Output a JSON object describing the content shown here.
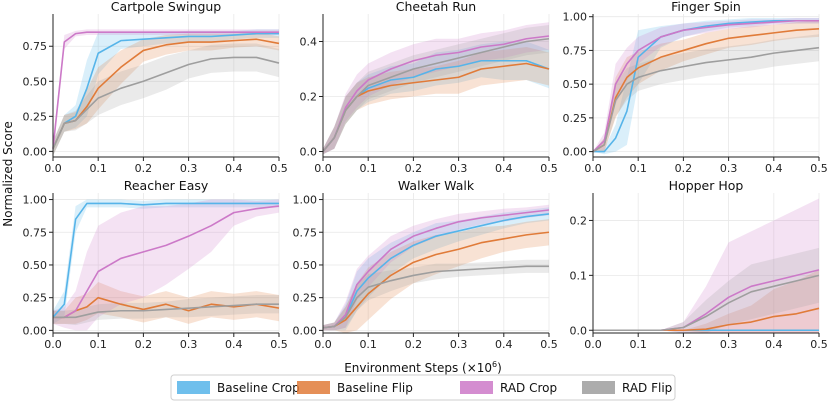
{
  "figure": {
    "ylabel": "Normalized Score",
    "xlabel_main": "Environment Steps (×10",
    "xlabel_exp": "6",
    "xlabel_tail": ")"
  },
  "legend": [
    {
      "name": "Baseline Crop",
      "color": "#56b4e9"
    },
    {
      "name": "Baseline Flip",
      "color": "#e07b39"
    },
    {
      "name": "RAD Crop",
      "color": "#cc79c8"
    },
    {
      "name": "RAD Flip",
      "color": "#9e9e9e"
    }
  ],
  "chart_data": [
    {
      "type": "line",
      "title": "Cartpole Swingup",
      "xlim": [
        0,
        0.5
      ],
      "ylim": [
        -0.04,
        0.98
      ],
      "xticks": [
        "0.0",
        "0.1",
        "0.2",
        "0.3",
        "0.4",
        "0.5"
      ],
      "yticks": [
        "0.00",
        "0.25",
        "0.50",
        "0.75"
      ],
      "x": [
        0.0,
        0.025,
        0.05,
        0.075,
        0.1,
        0.15,
        0.2,
        0.25,
        0.3,
        0.35,
        0.4,
        0.45,
        0.5
      ],
      "series": [
        {
          "name": "Baseline Crop",
          "values": [
            0.02,
            0.2,
            0.25,
            0.45,
            0.7,
            0.79,
            0.8,
            0.81,
            0.82,
            0.82,
            0.83,
            0.84,
            0.84
          ],
          "band": [
            0.05,
            0.06,
            0.08,
            0.2,
            0.15,
            0.06,
            0.05,
            0.04,
            0.04,
            0.04,
            0.03,
            0.03,
            0.03
          ]
        },
        {
          "name": "Baseline Flip",
          "values": [
            0.02,
            0.2,
            0.22,
            0.32,
            0.45,
            0.6,
            0.72,
            0.76,
            0.78,
            0.78,
            0.79,
            0.8,
            0.77
          ],
          "band": [
            0.05,
            0.06,
            0.06,
            0.12,
            0.15,
            0.12,
            0.08,
            0.07,
            0.06,
            0.06,
            0.05,
            0.05,
            0.05
          ]
        },
        {
          "name": "RAD Crop",
          "values": [
            0.02,
            0.78,
            0.84,
            0.85,
            0.85,
            0.85,
            0.85,
            0.85,
            0.85,
            0.85,
            0.85,
            0.85,
            0.85
          ],
          "band": [
            0.05,
            0.05,
            0.02,
            0.02,
            0.02,
            0.02,
            0.02,
            0.02,
            0.02,
            0.02,
            0.02,
            0.02,
            0.02
          ]
        },
        {
          "name": "RAD Flip",
          "values": [
            0.02,
            0.2,
            0.22,
            0.3,
            0.38,
            0.45,
            0.5,
            0.56,
            0.62,
            0.66,
            0.67,
            0.67,
            0.63
          ],
          "band": [
            0.05,
            0.06,
            0.07,
            0.1,
            0.12,
            0.12,
            0.12,
            0.12,
            0.1,
            0.1,
            0.1,
            0.1,
            0.1
          ]
        }
      ]
    },
    {
      "type": "line",
      "title": "Cheetah Run",
      "xlim": [
        0,
        0.5
      ],
      "ylim": [
        -0.02,
        0.5
      ],
      "xticks": [
        "0.0",
        "0.1",
        "0.2",
        "0.3",
        "0.4",
        "0.5"
      ],
      "yticks": [
        "0.0",
        "0.2",
        "0.4"
      ],
      "x": [
        0.0,
        0.025,
        0.05,
        0.075,
        0.1,
        0.15,
        0.2,
        0.25,
        0.3,
        0.35,
        0.4,
        0.45,
        0.5
      ],
      "series": [
        {
          "name": "Baseline Crop",
          "values": [
            0.0,
            0.05,
            0.15,
            0.2,
            0.23,
            0.26,
            0.27,
            0.3,
            0.31,
            0.33,
            0.33,
            0.33,
            0.3
          ],
          "band": [
            0.01,
            0.04,
            0.05,
            0.05,
            0.05,
            0.05,
            0.05,
            0.06,
            0.06,
            0.06,
            0.07,
            0.07,
            0.07
          ]
        },
        {
          "name": "Baseline Flip",
          "values": [
            0.0,
            0.05,
            0.15,
            0.2,
            0.22,
            0.24,
            0.25,
            0.26,
            0.27,
            0.3,
            0.31,
            0.32,
            0.3
          ],
          "band": [
            0.01,
            0.04,
            0.05,
            0.05,
            0.05,
            0.05,
            0.05,
            0.05,
            0.06,
            0.06,
            0.06,
            0.06,
            0.06
          ]
        },
        {
          "name": "RAD Crop",
          "values": [
            0.0,
            0.05,
            0.16,
            0.22,
            0.26,
            0.3,
            0.33,
            0.35,
            0.36,
            0.38,
            0.39,
            0.41,
            0.42
          ],
          "band": [
            0.01,
            0.04,
            0.05,
            0.06,
            0.06,
            0.06,
            0.06,
            0.06,
            0.05,
            0.05,
            0.05,
            0.05,
            0.05
          ]
        },
        {
          "name": "RAD Flip",
          "values": [
            0.0,
            0.05,
            0.15,
            0.2,
            0.24,
            0.27,
            0.3,
            0.32,
            0.34,
            0.36,
            0.38,
            0.4,
            0.41
          ],
          "band": [
            0.01,
            0.04,
            0.05,
            0.05,
            0.05,
            0.05,
            0.05,
            0.05,
            0.05,
            0.05,
            0.05,
            0.05,
            0.05
          ]
        }
      ]
    },
    {
      "type": "line",
      "title": "Finger Spin",
      "xlim": [
        0,
        0.5
      ],
      "ylim": [
        -0.04,
        1.02
      ],
      "xticks": [
        "0.0",
        "0.1",
        "0.2",
        "0.3",
        "0.4",
        "0.5"
      ],
      "yticks": [
        "0.00",
        "0.25",
        "0.50",
        "0.75",
        "1.00"
      ],
      "x": [
        0.0,
        0.025,
        0.05,
        0.075,
        0.1,
        0.15,
        0.2,
        0.25,
        0.3,
        0.35,
        0.4,
        0.45,
        0.5
      ],
      "series": [
        {
          "name": "Baseline Crop",
          "values": [
            0.0,
            0.0,
            0.1,
            0.3,
            0.7,
            0.85,
            0.9,
            0.93,
            0.95,
            0.96,
            0.97,
            0.97,
            0.97
          ],
          "band": [
            0.0,
            0.02,
            0.1,
            0.25,
            0.2,
            0.08,
            0.05,
            0.04,
            0.03,
            0.03,
            0.02,
            0.02,
            0.02
          ]
        },
        {
          "name": "Baseline Flip",
          "values": [
            0.0,
            0.05,
            0.4,
            0.55,
            0.62,
            0.7,
            0.75,
            0.8,
            0.84,
            0.86,
            0.88,
            0.9,
            0.91
          ],
          "band": [
            0.0,
            0.05,
            0.15,
            0.15,
            0.12,
            0.1,
            0.08,
            0.08,
            0.07,
            0.07,
            0.06,
            0.06,
            0.06
          ]
        },
        {
          "name": "RAD Crop",
          "values": [
            0.0,
            0.08,
            0.5,
            0.65,
            0.75,
            0.85,
            0.9,
            0.92,
            0.94,
            0.95,
            0.96,
            0.97,
            0.97
          ],
          "band": [
            0.0,
            0.06,
            0.15,
            0.12,
            0.1,
            0.07,
            0.05,
            0.04,
            0.03,
            0.03,
            0.02,
            0.02,
            0.02
          ]
        },
        {
          "name": "RAD Flip",
          "values": [
            0.0,
            0.05,
            0.38,
            0.5,
            0.55,
            0.6,
            0.63,
            0.66,
            0.68,
            0.7,
            0.73,
            0.75,
            0.77
          ],
          "band": [
            0.0,
            0.05,
            0.12,
            0.12,
            0.1,
            0.1,
            0.1,
            0.1,
            0.1,
            0.1,
            0.1,
            0.1,
            0.1
          ]
        }
      ]
    },
    {
      "type": "line",
      "title": "Reacher Easy",
      "xlim": [
        0,
        0.5
      ],
      "ylim": [
        -0.02,
        1.05
      ],
      "xticks": [
        "0.0",
        "0.1",
        "0.2",
        "0.3",
        "0.4",
        "0.5"
      ],
      "yticks": [
        "0.00",
        "0.25",
        "0.50",
        "0.75",
        "1.00"
      ],
      "x": [
        0.0,
        0.025,
        0.05,
        0.075,
        0.1,
        0.15,
        0.2,
        0.25,
        0.3,
        0.35,
        0.4,
        0.45,
        0.5
      ],
      "series": [
        {
          "name": "Baseline Crop",
          "values": [
            0.1,
            0.2,
            0.85,
            0.97,
            0.97,
            0.97,
            0.96,
            0.97,
            0.97,
            0.97,
            0.97,
            0.97,
            0.97
          ],
          "band": [
            0.05,
            0.1,
            0.1,
            0.03,
            0.03,
            0.03,
            0.03,
            0.03,
            0.03,
            0.03,
            0.03,
            0.03,
            0.03
          ]
        },
        {
          "name": "Baseline Flip",
          "values": [
            0.1,
            0.1,
            0.15,
            0.18,
            0.25,
            0.2,
            0.16,
            0.2,
            0.15,
            0.2,
            0.18,
            0.2,
            0.17
          ],
          "band": [
            0.05,
            0.05,
            0.1,
            0.1,
            0.12,
            0.1,
            0.1,
            0.1,
            0.1,
            0.1,
            0.1,
            0.1,
            0.1
          ]
        },
        {
          "name": "RAD Crop",
          "values": [
            0.1,
            0.1,
            0.15,
            0.3,
            0.45,
            0.55,
            0.6,
            0.65,
            0.72,
            0.8,
            0.9,
            0.93,
            0.95
          ],
          "band": [
            0.05,
            0.08,
            0.15,
            0.3,
            0.35,
            0.35,
            0.35,
            0.3,
            0.25,
            0.2,
            0.1,
            0.06,
            0.05
          ]
        },
        {
          "name": "RAD Flip",
          "values": [
            0.1,
            0.1,
            0.1,
            0.12,
            0.14,
            0.15,
            0.15,
            0.16,
            0.17,
            0.18,
            0.19,
            0.2,
            0.2
          ],
          "band": [
            0.05,
            0.05,
            0.06,
            0.06,
            0.06,
            0.06,
            0.06,
            0.06,
            0.07,
            0.07,
            0.07,
            0.07,
            0.07
          ]
        }
      ]
    },
    {
      "type": "line",
      "title": "Walker Walk",
      "xlim": [
        0,
        0.5
      ],
      "ylim": [
        -0.02,
        1.05
      ],
      "xticks": [
        "0.0",
        "0.1",
        "0.2",
        "0.3",
        "0.4",
        "0.5"
      ],
      "yticks": [
        "0.00",
        "0.25",
        "0.50",
        "0.75",
        "1.00"
      ],
      "x": [
        0.0,
        0.025,
        0.05,
        0.075,
        0.1,
        0.15,
        0.2,
        0.25,
        0.3,
        0.35,
        0.4,
        0.45,
        0.5
      ],
      "series": [
        {
          "name": "Baseline Crop",
          "values": [
            0.02,
            0.03,
            0.1,
            0.3,
            0.4,
            0.55,
            0.65,
            0.72,
            0.76,
            0.8,
            0.84,
            0.87,
            0.89
          ],
          "band": [
            0.02,
            0.03,
            0.1,
            0.15,
            0.15,
            0.12,
            0.1,
            0.1,
            0.08,
            0.07,
            0.06,
            0.05,
            0.05
          ]
        },
        {
          "name": "Baseline Flip",
          "values": [
            0.02,
            0.03,
            0.08,
            0.18,
            0.28,
            0.42,
            0.52,
            0.58,
            0.62,
            0.67,
            0.7,
            0.73,
            0.75
          ],
          "band": [
            0.02,
            0.03,
            0.1,
            0.18,
            0.2,
            0.18,
            0.16,
            0.15,
            0.13,
            0.12,
            0.1,
            0.1,
            0.1
          ]
        },
        {
          "name": "RAD Crop",
          "values": [
            0.02,
            0.03,
            0.12,
            0.35,
            0.45,
            0.62,
            0.72,
            0.78,
            0.83,
            0.86,
            0.88,
            0.9,
            0.92
          ],
          "band": [
            0.02,
            0.03,
            0.1,
            0.12,
            0.12,
            0.1,
            0.08,
            0.07,
            0.06,
            0.05,
            0.05,
            0.04,
            0.04
          ]
        },
        {
          "name": "RAD Flip",
          "values": [
            0.02,
            0.03,
            0.1,
            0.25,
            0.33,
            0.38,
            0.42,
            0.45,
            0.46,
            0.47,
            0.48,
            0.49,
            0.49
          ],
          "band": [
            0.02,
            0.03,
            0.08,
            0.1,
            0.1,
            0.08,
            0.06,
            0.06,
            0.05,
            0.05,
            0.05,
            0.05,
            0.05
          ]
        }
      ]
    },
    {
      "type": "line",
      "title": "Hopper Hop",
      "xlim": [
        0,
        0.5
      ],
      "ylim": [
        -0.005,
        0.25
      ],
      "xticks": [
        "0.0",
        "0.1",
        "0.2",
        "0.3",
        "0.4",
        "0.5"
      ],
      "yticks": [
        "0.0",
        "0.1",
        "0.2"
      ],
      "x": [
        0.0,
        0.05,
        0.1,
        0.15,
        0.2,
        0.25,
        0.3,
        0.35,
        0.4,
        0.45,
        0.5
      ],
      "series": [
        {
          "name": "Baseline Crop",
          "values": [
            0.0,
            0.0,
            0.0,
            0.0,
            0.0,
            0.0,
            0.0,
            0.0,
            0.0,
            0.0,
            0.0
          ],
          "band": [
            0.0,
            0.0,
            0.0,
            0.0,
            0.0,
            0.0,
            0.0,
            0.0,
            0.0,
            0.0,
            0.0
          ]
        },
        {
          "name": "Baseline Flip",
          "values": [
            0.0,
            0.0,
            0.0,
            0.0,
            0.0,
            0.002,
            0.01,
            0.015,
            0.025,
            0.03,
            0.04
          ],
          "band": [
            0.0,
            0.0,
            0.0,
            0.0,
            0.0,
            0.01,
            0.02,
            0.03,
            0.05,
            0.06,
            0.07
          ]
        },
        {
          "name": "RAD Crop",
          "values": [
            0.0,
            0.0,
            0.0,
            0.0,
            0.005,
            0.03,
            0.06,
            0.08,
            0.09,
            0.1,
            0.11
          ],
          "band": [
            0.0,
            0.0,
            0.0,
            0.0,
            0.01,
            0.05,
            0.1,
            0.1,
            0.11,
            0.12,
            0.13
          ]
        },
        {
          "name": "RAD Flip",
          "values": [
            0.0,
            0.0,
            0.0,
            0.0,
            0.005,
            0.025,
            0.05,
            0.07,
            0.08,
            0.09,
            0.1
          ],
          "band": [
            0.0,
            0.0,
            0.0,
            0.0,
            0.01,
            0.03,
            0.04,
            0.05,
            0.05,
            0.05,
            0.05
          ]
        }
      ]
    }
  ]
}
